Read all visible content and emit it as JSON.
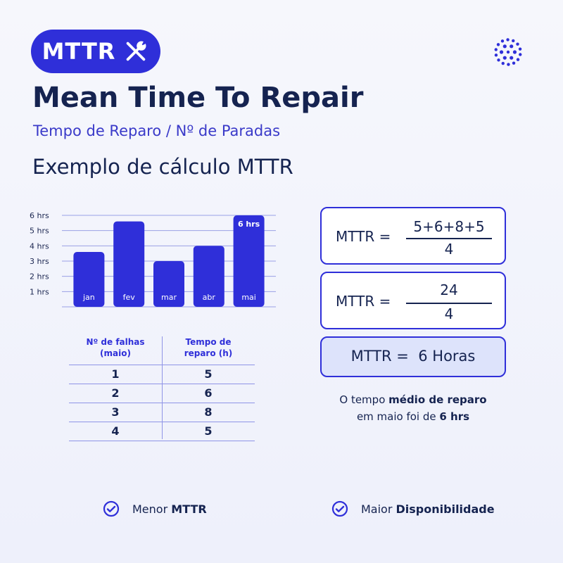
{
  "header": {
    "badge_label": "MTTR",
    "badge_icon": "wrench-screwdriver-icon",
    "logo_icon": "dot-circle-logo-icon",
    "title": "Mean Time To Repair",
    "subtitle": "Tempo de Reparo / Nº de Paradas",
    "section_title": "Exemplo de cálculo MTTR"
  },
  "colors": {
    "accent": "#2f2fd9",
    "navy": "#152350",
    "result_bg": "#dde3fb"
  },
  "chart_data": {
    "type": "bar",
    "categories": [
      "jan",
      "fev",
      "mar",
      "abr",
      "mai"
    ],
    "values": [
      3.6,
      5.6,
      3.0,
      4.0,
      6.0
    ],
    "y_ticks": [
      "1 hrs",
      "2 hrs",
      "3 hrs",
      "4 hrs",
      "5 hrs",
      "6 hrs"
    ],
    "ylim": [
      0,
      6
    ],
    "data_labels": [
      {
        "index": 4,
        "text": "6 hrs"
      }
    ],
    "grid": true,
    "bar_color": "#2f2fd9"
  },
  "table": {
    "headers": [
      "Nº de falhas (maio)",
      "Tempo de reparo (h)"
    ],
    "header_lines": [
      [
        "Nº de falhas",
        "(maio)"
      ],
      [
        "Tempo de",
        "reparo (h)"
      ]
    ],
    "rows": [
      [
        "1",
        "5"
      ],
      [
        "2",
        "6"
      ],
      [
        "3",
        "8"
      ],
      [
        "4",
        "5"
      ]
    ]
  },
  "formulas": [
    {
      "label": "MTTR  =",
      "numerator": "5+6+8+5",
      "denominator": "4"
    },
    {
      "label": "MTTR  =",
      "numerator": "24",
      "denominator": "4"
    }
  ],
  "result": {
    "text": "MTTR =  6 Horas"
  },
  "caption": {
    "line1_prefix": "O tempo ",
    "line1_bold": "médio de reparo",
    "line2_prefix": "em maio foi de ",
    "line2_bold": "6 hrs"
  },
  "footer": [
    {
      "prefix": "Menor ",
      "bold": "MTTR",
      "icon": "check-circle-icon"
    },
    {
      "prefix": "Maior ",
      "bold": "Disponibilidade",
      "icon": "check-circle-icon"
    }
  ]
}
